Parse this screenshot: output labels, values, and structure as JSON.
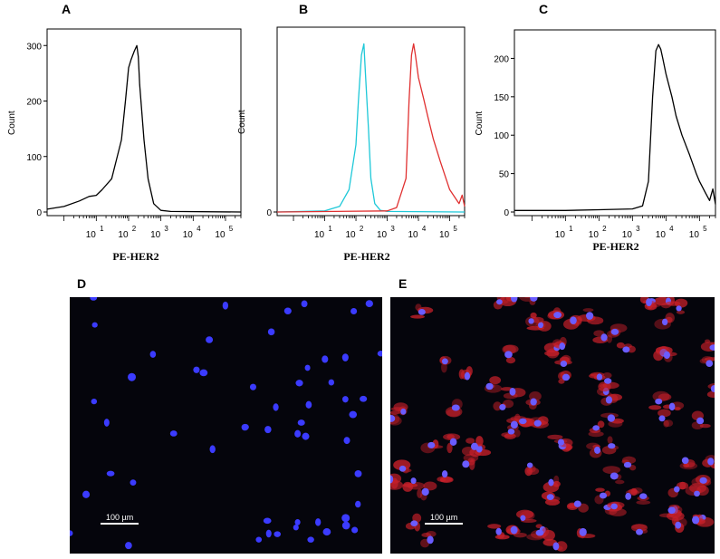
{
  "panels": {
    "A": "A",
    "B": "B",
    "C": "C",
    "D": "D",
    "E": "E"
  },
  "chart_data": [
    {
      "id": "A",
      "type": "line",
      "xlabel": "PE-HER2",
      "ylabel": "Count",
      "x_scale": "log",
      "xlim": [
        0.3,
        300000
      ],
      "ylim": [
        0,
        320
      ],
      "yticks": [
        0,
        100,
        200,
        300
      ],
      "xtick_labels": [
        "10^1",
        "10^2",
        "10^3",
        "10^4",
        "10^5"
      ],
      "series": [
        {
          "color": "#000000",
          "x": [
            0.3,
            1,
            3,
            6,
            10,
            15,
            30,
            60,
            80,
            100,
            120,
            150,
            180,
            200,
            220,
            300,
            400,
            600,
            1000,
            2000,
            300000
          ],
          "y": [
            5,
            10,
            20,
            28,
            30,
            40,
            60,
            130,
            200,
            260,
            275,
            290,
            300,
            280,
            230,
            130,
            60,
            15,
            3,
            1,
            0
          ]
        }
      ]
    },
    {
      "id": "B",
      "type": "line",
      "xlabel": "PE-HER2",
      "ylabel": "Count",
      "x_scale": "log",
      "xlim": [
        0.3,
        300000
      ],
      "ylim": [
        0,
        320
      ],
      "yticks": [
        0
      ],
      "xtick_labels": [
        "10^1",
        "10^2",
        "10^3",
        "10^4",
        "10^5"
      ],
      "series": [
        {
          "color": "#1ec8d8",
          "x": [
            0.3,
            10,
            30,
            60,
            100,
            120,
            150,
            180,
            200,
            250,
            300,
            400,
            600,
            1000,
            300000
          ],
          "y": [
            0,
            2,
            10,
            40,
            120,
            200,
            280,
            300,
            250,
            150,
            60,
            15,
            3,
            1,
            0
          ]
        },
        {
          "color": "#e03030",
          "x": [
            0.3,
            1000,
            2000,
            4000,
            5000,
            6000,
            7000,
            8000,
            10000,
            15000,
            20000,
            30000,
            50000,
            100000,
            200000,
            250000,
            300000
          ],
          "y": [
            0,
            2,
            8,
            60,
            200,
            280,
            300,
            280,
            240,
            200,
            170,
            130,
            90,
            40,
            15,
            30,
            10
          ]
        }
      ]
    },
    {
      "id": "C",
      "type": "line",
      "xlabel": "PE-HER2",
      "ylabel": "Count",
      "x_scale": "log",
      "xlim": [
        0.3,
        300000
      ],
      "ylim": [
        0,
        230
      ],
      "yticks": [
        0,
        50,
        100,
        150,
        200
      ],
      "xtick_labels": [
        "10^1",
        "10^2",
        "10^3",
        "10^4",
        "10^5"
      ],
      "series": [
        {
          "color": "#000000",
          "x": [
            0.3,
            10,
            100,
            1000,
            2000,
            3000,
            4000,
            5000,
            6000,
            7000,
            8000,
            10000,
            15000,
            20000,
            30000,
            50000,
            80000,
            100000,
            150000,
            200000,
            250000,
            300000
          ],
          "y": [
            2,
            2,
            3,
            4,
            8,
            40,
            150,
            210,
            218,
            212,
            200,
            180,
            150,
            125,
            100,
            75,
            50,
            40,
            25,
            15,
            30,
            10
          ]
        }
      ]
    }
  ],
  "micrographs": [
    {
      "id": "D",
      "scale_bar_label": "100 µm"
    },
    {
      "id": "E",
      "scale_bar_label": "100 µm"
    }
  ]
}
